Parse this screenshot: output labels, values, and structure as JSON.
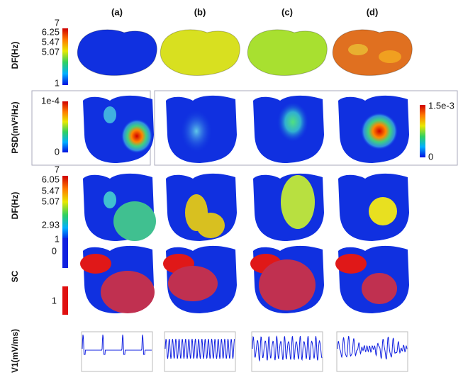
{
  "columns": [
    "(a)",
    "(b)",
    "(c)",
    "(d)"
  ],
  "rows": [
    {
      "label": "DF(Hz)",
      "colorbar": [
        "7",
        "6.25",
        "5.47",
        "5.07",
        "1"
      ]
    },
    {
      "label": "PSD(mV²/Hz)",
      "colorbar": [
        "1e-4",
        "0"
      ],
      "colorbar_right": [
        "1.5e-3",
        "0"
      ]
    },
    {
      "label": "DF(Hz)",
      "colorbar": [
        "7",
        "6.05",
        "5.47",
        "5.07",
        "2.93",
        "1"
      ]
    },
    {
      "label": "SC",
      "colorbar": [
        "0",
        "1"
      ]
    },
    {
      "label": "V1(mV/ms)"
    }
  ]
}
